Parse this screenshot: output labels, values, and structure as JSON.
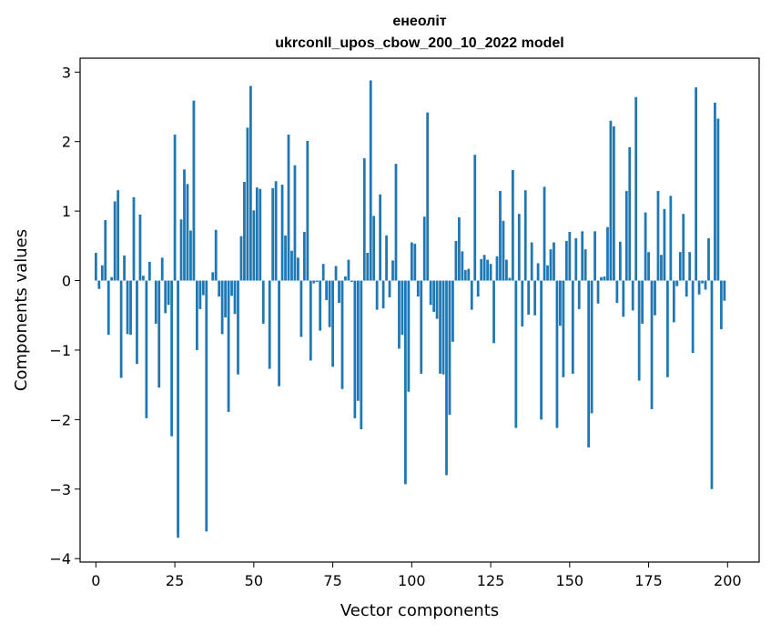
{
  "chart_data": {
    "type": "bar",
    "title": "енеоліт",
    "subtitle": "ukrconll_upos_cbow_200_10_2022 model",
    "xlabel": "Vector components",
    "ylabel": "Components values",
    "xlim": [
      -5,
      210
    ],
    "ylim": [
      -4.05,
      3.2
    ],
    "x_ticks": [
      0,
      25,
      50,
      75,
      100,
      125,
      150,
      175,
      200
    ],
    "y_ticks": [
      -4,
      -3,
      -2,
      -1,
      0,
      1,
      2,
      3
    ],
    "x_tick_labels": [
      "0",
      "25",
      "50",
      "75",
      "100",
      "125",
      "150",
      "175",
      "200"
    ],
    "y_tick_labels": [
      "−4",
      "−3",
      "−2",
      "−1",
      "0",
      "1",
      "2",
      "3"
    ],
    "grid": false,
    "legend": "none",
    "bar_color": "#1f77b4",
    "x_start": 0,
    "values": [
      0.4,
      -0.12,
      0.22,
      0.87,
      -0.78,
      0.05,
      1.14,
      1.3,
      -1.4,
      0.36,
      -0.77,
      -0.78,
      1.2,
      -1.2,
      0.95,
      0.07,
      -1.98,
      0.27,
      0.0,
      -0.62,
      -1.54,
      0.33,
      -0.47,
      -0.35,
      -2.24,
      2.1,
      -3.7,
      0.88,
      1.6,
      1.39,
      0.72,
      2.59,
      -1.0,
      -0.41,
      -0.21,
      -3.61,
      0.0,
      0.12,
      0.73,
      -0.23,
      -0.77,
      -0.53,
      -1.89,
      -0.22,
      -0.48,
      -1.35,
      0.64,
      1.42,
      2.2,
      2.8,
      1.01,
      1.34,
      1.32,
      -0.62,
      0.0,
      -1.27,
      1.33,
      1.43,
      -1.52,
      1.38,
      0.65,
      2.1,
      0.43,
      1.66,
      0.33,
      -0.81,
      0.7,
      2.01,
      -1.15,
      -0.04,
      -0.02,
      -0.72,
      0.24,
      -0.28,
      -0.67,
      -1.24,
      0.21,
      -0.32,
      -1.56,
      0.06,
      0.3,
      -0.02,
      -1.98,
      -1.73,
      -2.14,
      1.76,
      0.4,
      2.88,
      0.93,
      -0.42,
      1.24,
      -0.4,
      0.65,
      -0.24,
      0.29,
      1.68,
      -0.98,
      -0.78,
      -2.93,
      -1.6,
      0.55,
      0.53,
      -0.23,
      -1.34,
      0.92,
      2.42,
      -0.35,
      -0.45,
      -0.55,
      -1.34,
      -1.35,
      -2.8,
      -1.93,
      -0.88,
      0.57,
      0.91,
      0.42,
      0.15,
      0.17,
      -0.42,
      1.81,
      -0.23,
      0.31,
      0.37,
      0.3,
      0.24,
      -0.9,
      0.35,
      1.29,
      0.86,
      0.3,
      0.04,
      1.59,
      -2.12,
      0.96,
      -0.66,
      1.3,
      -0.49,
      0.55,
      -0.5,
      0.25,
      -2.0,
      1.35,
      0.22,
      0.45,
      0.55,
      -2.12,
      -0.65,
      -1.39,
      0.57,
      0.7,
      -1.34,
      0.61,
      -0.41,
      0.71,
      0.45,
      -2.4,
      -1.91,
      0.71,
      -0.33,
      0.05,
      0.06,
      0.77,
      2.3,
      2.22,
      -0.32,
      0.56,
      -0.52,
      1.29,
      1.92,
      -0.43,
      2.64,
      -1.44,
      -0.62,
      0.98,
      0.41,
      -1.85,
      -0.5,
      1.29,
      0.37,
      1.03,
      -1.39,
      1.22,
      -0.6,
      -0.08,
      0.41,
      0.96,
      -0.23,
      0.41,
      -1.04,
      2.78,
      -0.2,
      -0.04,
      -0.13,
      0.61,
      -3.0,
      2.56,
      2.33,
      -0.7,
      -0.29
    ]
  }
}
